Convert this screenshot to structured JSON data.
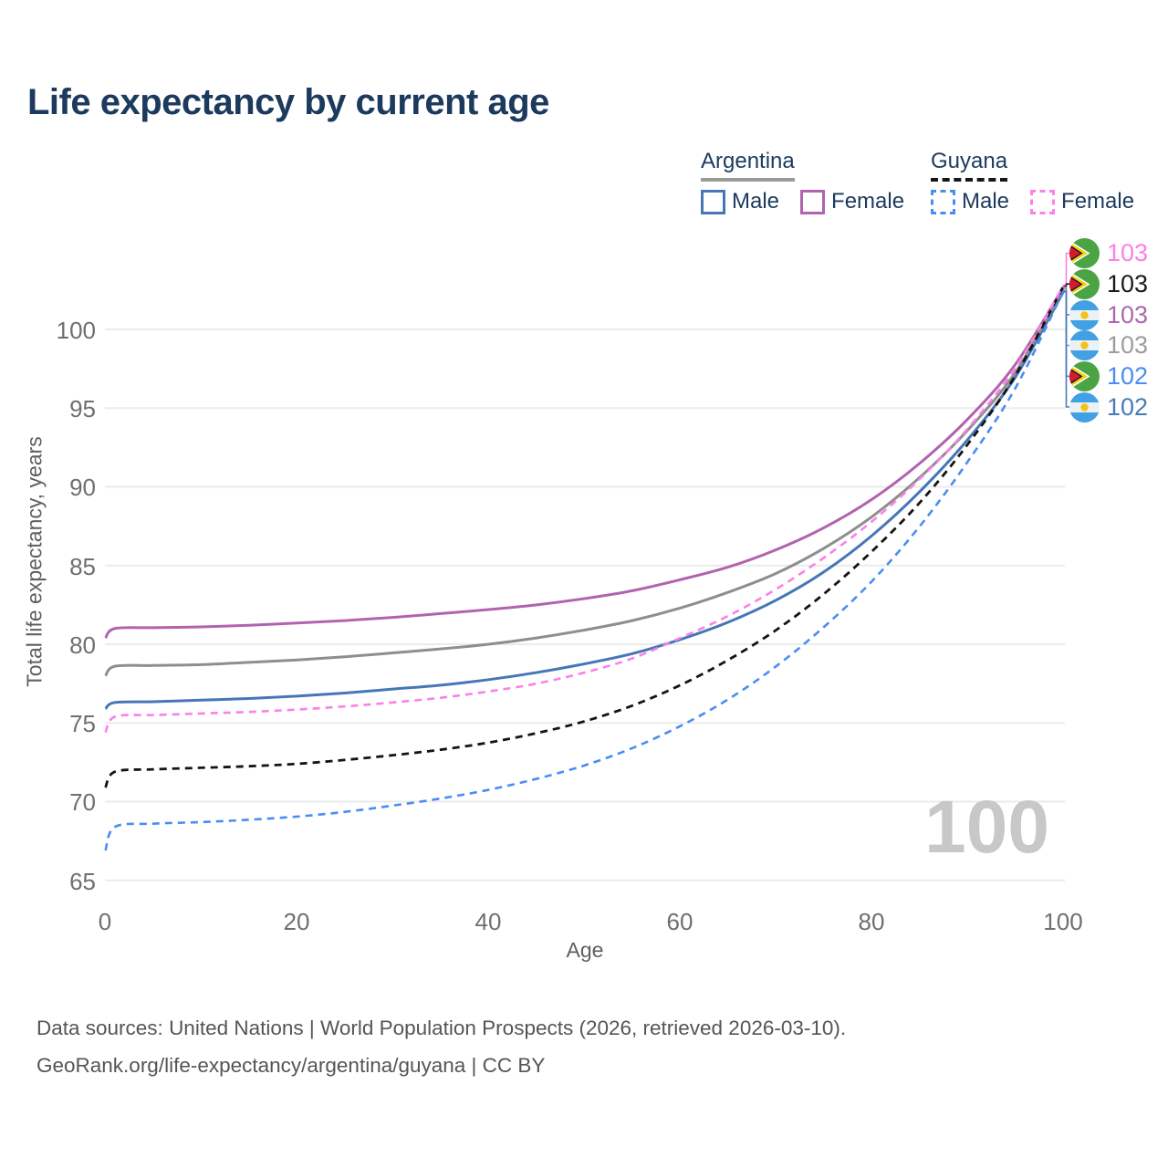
{
  "title": "Life expectancy by current age",
  "legend": {
    "argentina": {
      "country": "Argentina",
      "male_label": "Male",
      "female_label": "Female"
    },
    "guyana": {
      "country": "Guyana",
      "male_label": "Male",
      "female_label": "Female"
    }
  },
  "colors": {
    "title_text": "#1c3a5e",
    "argentina_male": "#4577b6",
    "argentina_total": "#8e8e8e",
    "argentina_female": "#b263af",
    "guyana_male": "#4a8df2",
    "guyana_total": "#141414",
    "guyana_female": "#fb80e8",
    "gridline": "#ebebeb",
    "tick_text": "#6f6f6f",
    "watermark_text": "#c8c8c8"
  },
  "chart_data": {
    "type": "line",
    "title": "Life expectancy by current age",
    "xlabel": "Age",
    "ylabel": "Total life expectancy, years",
    "xlim": [
      0,
      100
    ],
    "ylim": [
      65,
      103
    ],
    "grid": "horizontal-only",
    "legend_position": "top-right",
    "x_ticks": [
      "0",
      "20",
      "40",
      "60",
      "80",
      "100"
    ],
    "y_ticks": [
      "65",
      "70",
      "75",
      "80",
      "85",
      "90",
      "95",
      "100"
    ],
    "x": [
      0,
      1,
      5,
      10,
      15,
      20,
      25,
      30,
      35,
      40,
      45,
      50,
      55,
      60,
      65,
      70,
      75,
      80,
      85,
      90,
      95,
      100
    ],
    "series": [
      {
        "name": "Argentina Male",
        "country": "Argentina",
        "sex": "Male",
        "style": "solid",
        "color": "#4577b6",
        "width": 3,
        "values": [
          75.9,
          76.3,
          76.35,
          76.45,
          76.55,
          76.7,
          76.9,
          77.15,
          77.4,
          77.75,
          78.2,
          78.75,
          79.4,
          80.3,
          81.4,
          82.8,
          84.6,
          86.9,
          89.7,
          93.0,
          97.0,
          102.4
        ]
      },
      {
        "name": "Argentina",
        "country": "Argentina",
        "sex": "Both",
        "style": "solid",
        "color": "#8e8e8e",
        "width": 3,
        "values": [
          78.0,
          78.6,
          78.65,
          78.7,
          78.85,
          79.0,
          79.2,
          79.45,
          79.7,
          80.0,
          80.4,
          80.9,
          81.5,
          82.3,
          83.3,
          84.5,
          86.1,
          88.1,
          90.6,
          93.6,
          97.3,
          102.6
        ]
      },
      {
        "name": "Argentina Female",
        "country": "Argentina",
        "sex": "Female",
        "style": "solid",
        "color": "#b263af",
        "width": 3,
        "values": [
          80.4,
          81.0,
          81.05,
          81.1,
          81.2,
          81.35,
          81.5,
          81.7,
          81.95,
          82.2,
          82.5,
          82.9,
          83.4,
          84.1,
          84.9,
          86.0,
          87.4,
          89.2,
          91.5,
          94.3,
          97.8,
          102.7
        ]
      },
      {
        "name": "Guyana Male",
        "country": "Guyana",
        "sex": "Male",
        "style": "dashed",
        "color": "#4a8df2",
        "width": 2.6,
        "values": [
          66.9,
          68.4,
          68.6,
          68.7,
          68.85,
          69.05,
          69.35,
          69.75,
          70.2,
          70.75,
          71.45,
          72.3,
          73.4,
          74.8,
          76.5,
          78.6,
          81.1,
          84.0,
          87.5,
          91.6,
          96.3,
          102.45
        ]
      },
      {
        "name": "Guyana",
        "country": "Guyana",
        "sex": "Both",
        "style": "dashed",
        "color": "#141414",
        "width": 2.8,
        "values": [
          70.9,
          71.9,
          72.05,
          72.15,
          72.25,
          72.4,
          72.65,
          72.95,
          73.3,
          73.75,
          74.35,
          75.1,
          76.1,
          77.4,
          79.0,
          80.9,
          83.2,
          85.9,
          89.0,
          92.7,
          97.1,
          102.75
        ]
      },
      {
        "name": "Guyana Female",
        "country": "Guyana",
        "sex": "Female",
        "style": "dashed",
        "color": "#fb80e8",
        "width": 2.6,
        "values": [
          74.4,
          75.4,
          75.5,
          75.6,
          75.7,
          75.85,
          76.05,
          76.3,
          76.6,
          77.0,
          77.5,
          78.2,
          79.1,
          80.4,
          81.8,
          83.5,
          85.5,
          87.8,
          90.5,
          93.7,
          97.6,
          102.8
        ]
      }
    ]
  },
  "yaxis": {
    "ticks": [
      "100",
      "95",
      "90",
      "85",
      "80",
      "75",
      "70",
      "65"
    ]
  },
  "xaxis": {
    "ticks": [
      "0",
      "20",
      "40",
      "60",
      "80",
      "100"
    ]
  },
  "end_labels": [
    {
      "flag": "guyana",
      "value": "103",
      "color": "#fb80e8",
      "series": 5
    },
    {
      "flag": "guyana",
      "value": "103",
      "color": "#1a1a1a",
      "series": 4
    },
    {
      "flag": "argentina",
      "value": "103",
      "color": "#ac68ae",
      "series": 2
    },
    {
      "flag": "argentina",
      "value": "103",
      "color": "#9d9d9d",
      "series": 1
    },
    {
      "flag": "guyana",
      "value": "102",
      "color": "#4a8df2",
      "series": 3
    },
    {
      "flag": "argentina",
      "value": "102",
      "color": "#4a7ab9",
      "series": 0
    }
  ],
  "watermark": "100",
  "footer": {
    "line1": "Data sources: United Nations | World Population Prospects (2026, retrieved 2026-03-10).",
    "line2": "GeoRank.org/life-expectancy/argentina/guyana | CC BY"
  }
}
